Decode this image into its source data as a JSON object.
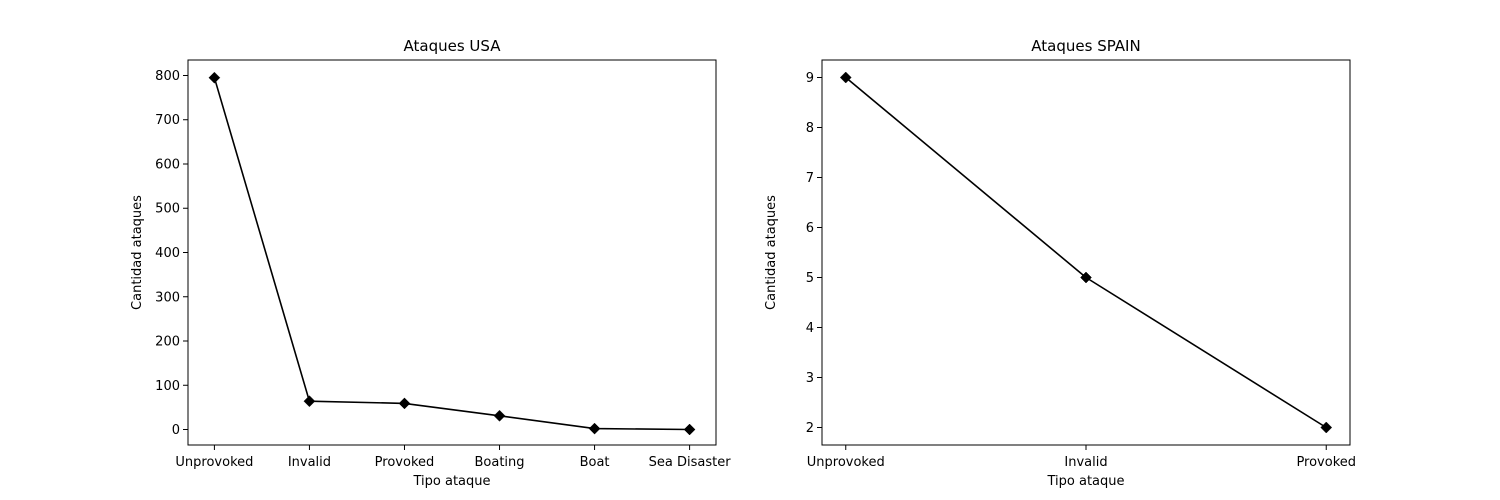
{
  "figure": {
    "background": "#ffffff",
    "line_color": "#000000",
    "marker": "diamond"
  },
  "chart_data": [
    {
      "type": "line",
      "title": "Ataques USA",
      "xlabel": "Tipo ataque",
      "ylabel": "Cantidad ataques",
      "categories": [
        "Unprovoked",
        "Invalid",
        "Provoked",
        "Boating",
        "Boat",
        "Sea Disaster"
      ],
      "values": [
        795,
        64,
        59,
        31,
        2,
        0
      ],
      "ylim": [
        -35,
        835
      ],
      "yticks": [
        0,
        100,
        200,
        300,
        400,
        500,
        600,
        700,
        800
      ],
      "grid": false,
      "color": "#000000"
    },
    {
      "type": "line",
      "title": "Ataques SPAIN",
      "xlabel": "Tipo ataque",
      "ylabel": "Cantidad ataques",
      "categories": [
        "Unprovoked",
        "Invalid",
        "Provoked"
      ],
      "values": [
        9,
        5,
        2
      ],
      "ylim": [
        1.65,
        9.35
      ],
      "yticks": [
        2,
        3,
        4,
        5,
        6,
        7,
        8,
        9
      ],
      "grid": false,
      "color": "#000000"
    }
  ]
}
